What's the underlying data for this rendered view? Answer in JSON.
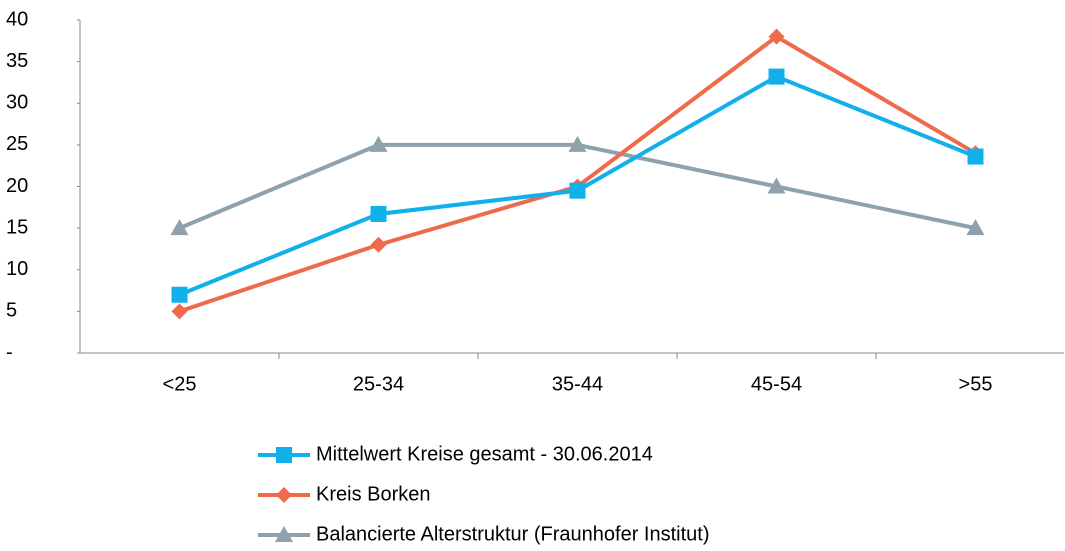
{
  "chart_data": {
    "type": "line",
    "categories": [
      "<25",
      "25-34",
      "35-44",
      "45-54",
      ">55"
    ],
    "series": [
      {
        "name": "Mittelwert Kreise gesamt - 30.06.2014",
        "color": "#12b0ea",
        "marker": "square",
        "values": [
          7,
          16.7,
          19.5,
          33.2,
          23.6
        ]
      },
      {
        "name": "Kreis Borken",
        "color": "#ef6a4a",
        "marker": "diamond",
        "values": [
          5,
          13,
          20,
          38,
          24
        ]
      },
      {
        "name": "Balancierte Alterstruktur (Fraunhofer Institut)",
        "color": "#8ea2ae",
        "marker": "triangle",
        "values": [
          15,
          25,
          25,
          20,
          15
        ]
      }
    ],
    "ylim": [
      0,
      40
    ],
    "yticks": [
      {
        "value": 0,
        "label": "-"
      },
      5,
      10,
      15,
      20,
      25,
      30,
      35,
      40
    ],
    "grid": false
  }
}
